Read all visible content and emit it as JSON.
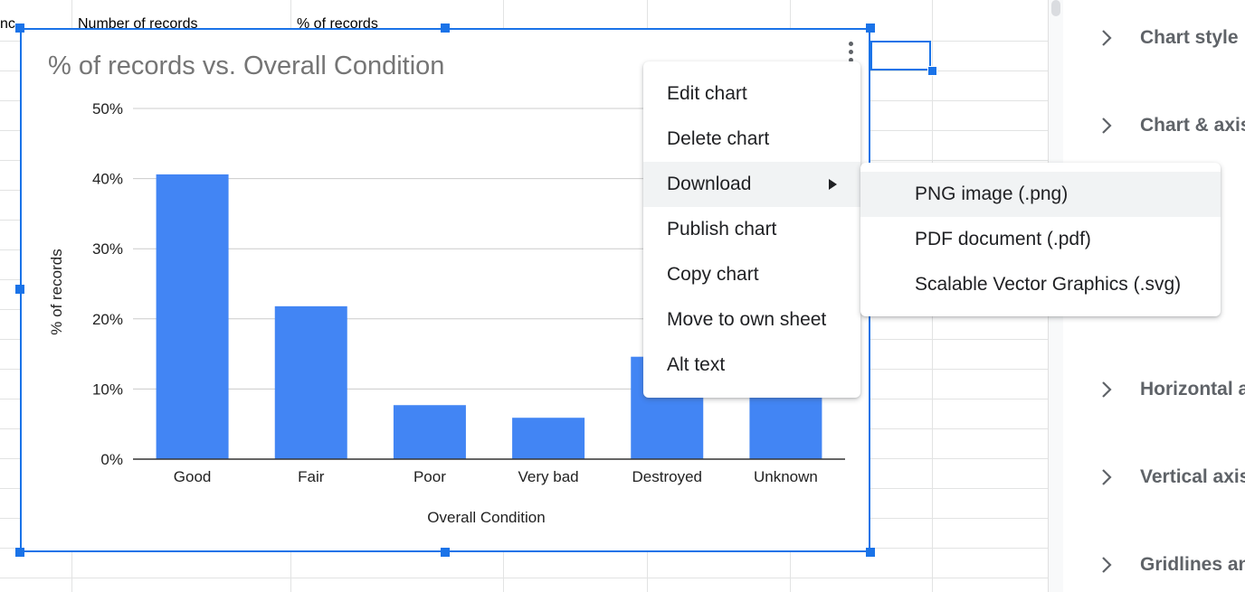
{
  "sheet": {
    "col_headers": [
      "nc",
      "Number of records",
      "% of records"
    ]
  },
  "chart_data": {
    "type": "bar",
    "title": "% of records vs. Overall Condition",
    "xlabel": "Overall Condition",
    "ylabel": "% of records",
    "categories": [
      "Good",
      "Fair",
      "Poor",
      "Very bad",
      "Destroyed",
      "Unknown"
    ],
    "values": [
      40.6,
      21.8,
      7.7,
      5.9,
      14.6,
      9.1
    ],
    "ylim": [
      0,
      50
    ],
    "yticks": [
      "0%",
      "10%",
      "20%",
      "30%",
      "40%",
      "50%"
    ],
    "bar_color": "#4285f4",
    "grid": true,
    "legend": "none"
  },
  "context_menu": {
    "items": [
      {
        "label": "Edit chart"
      },
      {
        "label": "Delete chart"
      },
      {
        "label": "Download",
        "has_submenu": true,
        "highlighted": true
      },
      {
        "label": "Publish chart"
      },
      {
        "label": "Copy chart"
      },
      {
        "label": "Move to own sheet"
      },
      {
        "label": "Alt text"
      }
    ]
  },
  "download_submenu": {
    "items": [
      {
        "label": "PNG image (.png)",
        "highlighted": true
      },
      {
        "label": "PDF document (.pdf)"
      },
      {
        "label": "Scalable Vector Graphics (.svg)"
      }
    ]
  },
  "side_panel": {
    "sections": [
      {
        "label": "Chart style"
      },
      {
        "label": "Chart & axis titles"
      },
      {
        "label": "Horizontal axis"
      },
      {
        "label": "Vertical axis"
      },
      {
        "label": "Gridlines and ticks"
      }
    ]
  },
  "colors": {
    "accent": "#1a73e8",
    "menu_highlight": "#f1f3f4"
  },
  "icons": {
    "chart_menu": "more-vert-icon",
    "section_expand": "chevron-right-icon",
    "submenu": "arrow-right-icon"
  }
}
